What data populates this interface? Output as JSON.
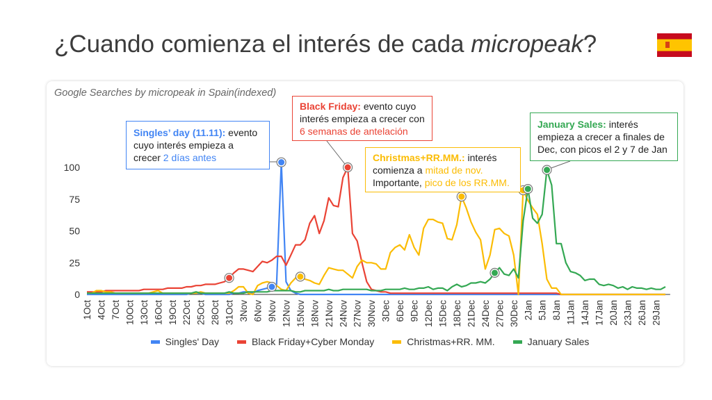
{
  "slide": {
    "title_prefix": "¿Cuando comienza el interés de cada ",
    "title_italic": "micropeak",
    "title_suffix": "?",
    "flag_icon": "spain-flag"
  },
  "annotations": {
    "singles": {
      "bold": "Singles’ day (11.11):",
      "text": " evento cuyo interés empieza a crecer ",
      "highlight": "2 días antes",
      "color": "#4285f4"
    },
    "black_friday": {
      "bold": "Black Friday:",
      "text": " evento cuyo interés empieza a crecer con ",
      "highlight": "6 semanas de antelación",
      "color": "#ea4335"
    },
    "christmas": {
      "bold": "Christmas+RR.MM.:",
      "text": " interés comienza a ",
      "highlight": "mitad de nov.",
      "text2": " Importante, ",
      "highlight2": "pico de los RR.MM.",
      "color": "#fbbc04"
    },
    "january": {
      "bold": "January Sales:",
      "text": " interés empieza a crecer a finales de Dec, con picos el 2 y 7 de Jan",
      "color": "#34a853"
    }
  },
  "chart_data": {
    "type": "line",
    "title": "Google Searches by micropeak in Spain(indexed)",
    "xlabel": "",
    "ylabel": "",
    "ylim": [
      0,
      100
    ],
    "y_ticks": [
      "0",
      "25",
      "50",
      "75",
      "100"
    ],
    "x_ticks": [
      "1Oct",
      "4Oct",
      "7Oct",
      "10Oct",
      "13Oct",
      "16Oct",
      "19Oct",
      "22Oct",
      "25Oct",
      "28Oct",
      "31Oct",
      "3Nov",
      "6Nov",
      "9Nov",
      "12Nov",
      "15Nov",
      "18Nov",
      "21Nov",
      "24Nov",
      "27Nov",
      "30Nov",
      "3Dec",
      "6Dec",
      "9Dec",
      "12Dec",
      "15Dec",
      "18Dec",
      "21Dec",
      "24Dec",
      "27Dec",
      "30Dec",
      "2Jan",
      "5Jan",
      "8Jan",
      "11Jan",
      "14Jan",
      "17Jan",
      "20Jan",
      "23Jan",
      "26Jan",
      "29Jan"
    ],
    "grid": false,
    "legend": "bottom",
    "series": [
      {
        "name": "Singles' Day",
        "color": "#4285f4",
        "highlights": [
          39,
          41
        ],
        "values": [
          0,
          0,
          0,
          0,
          0,
          0,
          0,
          0,
          0,
          0,
          0,
          0,
          0,
          0,
          0,
          0,
          0,
          0,
          0,
          0,
          0,
          0,
          1,
          1,
          1,
          0,
          0,
          0,
          0,
          0,
          0,
          1,
          1,
          2,
          2,
          1,
          3,
          4,
          5,
          6,
          8,
          104,
          10,
          3,
          1,
          0,
          0,
          0,
          0,
          0,
          0,
          0,
          0,
          0,
          0,
          0,
          0,
          0,
          0,
          0,
          0,
          0,
          0,
          0,
          0,
          0,
          0,
          0,
          0,
          0,
          0,
          0,
          0,
          0,
          0,
          0,
          0,
          0,
          0,
          0,
          0,
          0,
          0,
          0,
          0,
          0,
          0,
          0,
          0,
          0,
          0,
          0,
          0,
          0,
          0,
          0,
          0,
          0,
          0,
          0,
          0,
          0,
          0,
          0,
          0,
          0,
          0,
          0,
          0,
          0,
          0,
          0,
          0,
          0,
          0,
          0,
          0,
          0,
          0,
          0,
          0,
          0,
          0
        ]
      },
      {
        "name": "Black Friday+Cyber Monday",
        "color": "#ea4335",
        "highlights": [
          30,
          55
        ],
        "values": [
          2,
          2,
          2,
          2,
          3,
          3,
          3,
          3,
          3,
          3,
          3,
          3,
          4,
          4,
          4,
          4,
          4,
          5,
          5,
          5,
          5,
          6,
          6,
          7,
          7,
          8,
          8,
          8,
          9,
          10,
          13,
          17,
          20,
          20,
          19,
          18,
          22,
          26,
          25,
          27,
          30,
          30,
          23,
          31,
          39,
          39,
          43,
          56,
          62,
          48,
          58,
          76,
          70,
          69,
          92,
          100,
          48,
          42,
          25,
          10,
          4,
          3,
          2,
          2,
          1,
          1,
          1,
          1,
          1,
          1,
          1,
          1,
          1,
          1,
          1,
          1,
          1,
          1,
          1,
          1,
          1,
          1,
          1,
          1,
          1,
          1,
          1,
          1,
          1,
          1,
          1,
          1,
          1,
          1,
          1,
          1,
          1,
          1,
          1,
          1,
          0,
          0,
          0,
          0,
          0,
          0,
          0,
          0,
          0,
          0,
          0,
          0,
          0,
          0,
          0,
          0,
          0,
          0,
          0,
          0,
          0,
          0,
          0
        ]
      },
      {
        "name": "Christmas+RR. MM.",
        "color": "#fbbc04",
        "highlights": [
          45,
          79,
          92
        ],
        "values": [
          1,
          1,
          3,
          3,
          2,
          2,
          1,
          1,
          1,
          1,
          1,
          1,
          1,
          1,
          2,
          3,
          1,
          1,
          1,
          1,
          1,
          1,
          1,
          1,
          2,
          1,
          1,
          1,
          1,
          1,
          1,
          3,
          6,
          6,
          1,
          0,
          7,
          9,
          10,
          9,
          7,
          4,
          3,
          9,
          13,
          14,
          12,
          11,
          9,
          8,
          15,
          21,
          20,
          19,
          19,
          16,
          13,
          22,
          27,
          25,
          25,
          24,
          20,
          20,
          33,
          37,
          39,
          35,
          47,
          37,
          31,
          52,
          59,
          59,
          57,
          56,
          44,
          43,
          55,
          77,
          68,
          57,
          49,
          43,
          20,
          31,
          51,
          52,
          48,
          46,
          31,
          0,
          82,
          74,
          68,
          63,
          40,
          12,
          5,
          5,
          0,
          0,
          0,
          0,
          0,
          0,
          0,
          0,
          0,
          0,
          0,
          0,
          0,
          0,
          0,
          0,
          0,
          0,
          0,
          0,
          0,
          0,
          0
        ]
      },
      {
        "name": "January Sales",
        "color": "#34a853",
        "highlights": [
          86,
          93,
          97
        ],
        "values": [
          1,
          1,
          1,
          1,
          1,
          1,
          1,
          1,
          1,
          1,
          1,
          1,
          1,
          1,
          1,
          1,
          1,
          1,
          1,
          1,
          1,
          1,
          1,
          2,
          1,
          1,
          1,
          1,
          1,
          1,
          2,
          1,
          1,
          1,
          2,
          2,
          2,
          2,
          2,
          3,
          3,
          3,
          3,
          3,
          2,
          2,
          3,
          3,
          3,
          3,
          3,
          4,
          3,
          3,
          4,
          4,
          4,
          4,
          4,
          4,
          3,
          3,
          3,
          4,
          4,
          4,
          4,
          5,
          4,
          4,
          5,
          5,
          6,
          4,
          5,
          5,
          3,
          6,
          8,
          6,
          7,
          9,
          9,
          10,
          9,
          12,
          17,
          21,
          16,
          15,
          20,
          13,
          58,
          83,
          60,
          56,
          63,
          98,
          86,
          40,
          40,
          25,
          18,
          17,
          15,
          11,
          12,
          12,
          8,
          7,
          8,
          7,
          5,
          6,
          4,
          6,
          5,
          5,
          4,
          5,
          4,
          4,
          6
        ]
      }
    ]
  }
}
